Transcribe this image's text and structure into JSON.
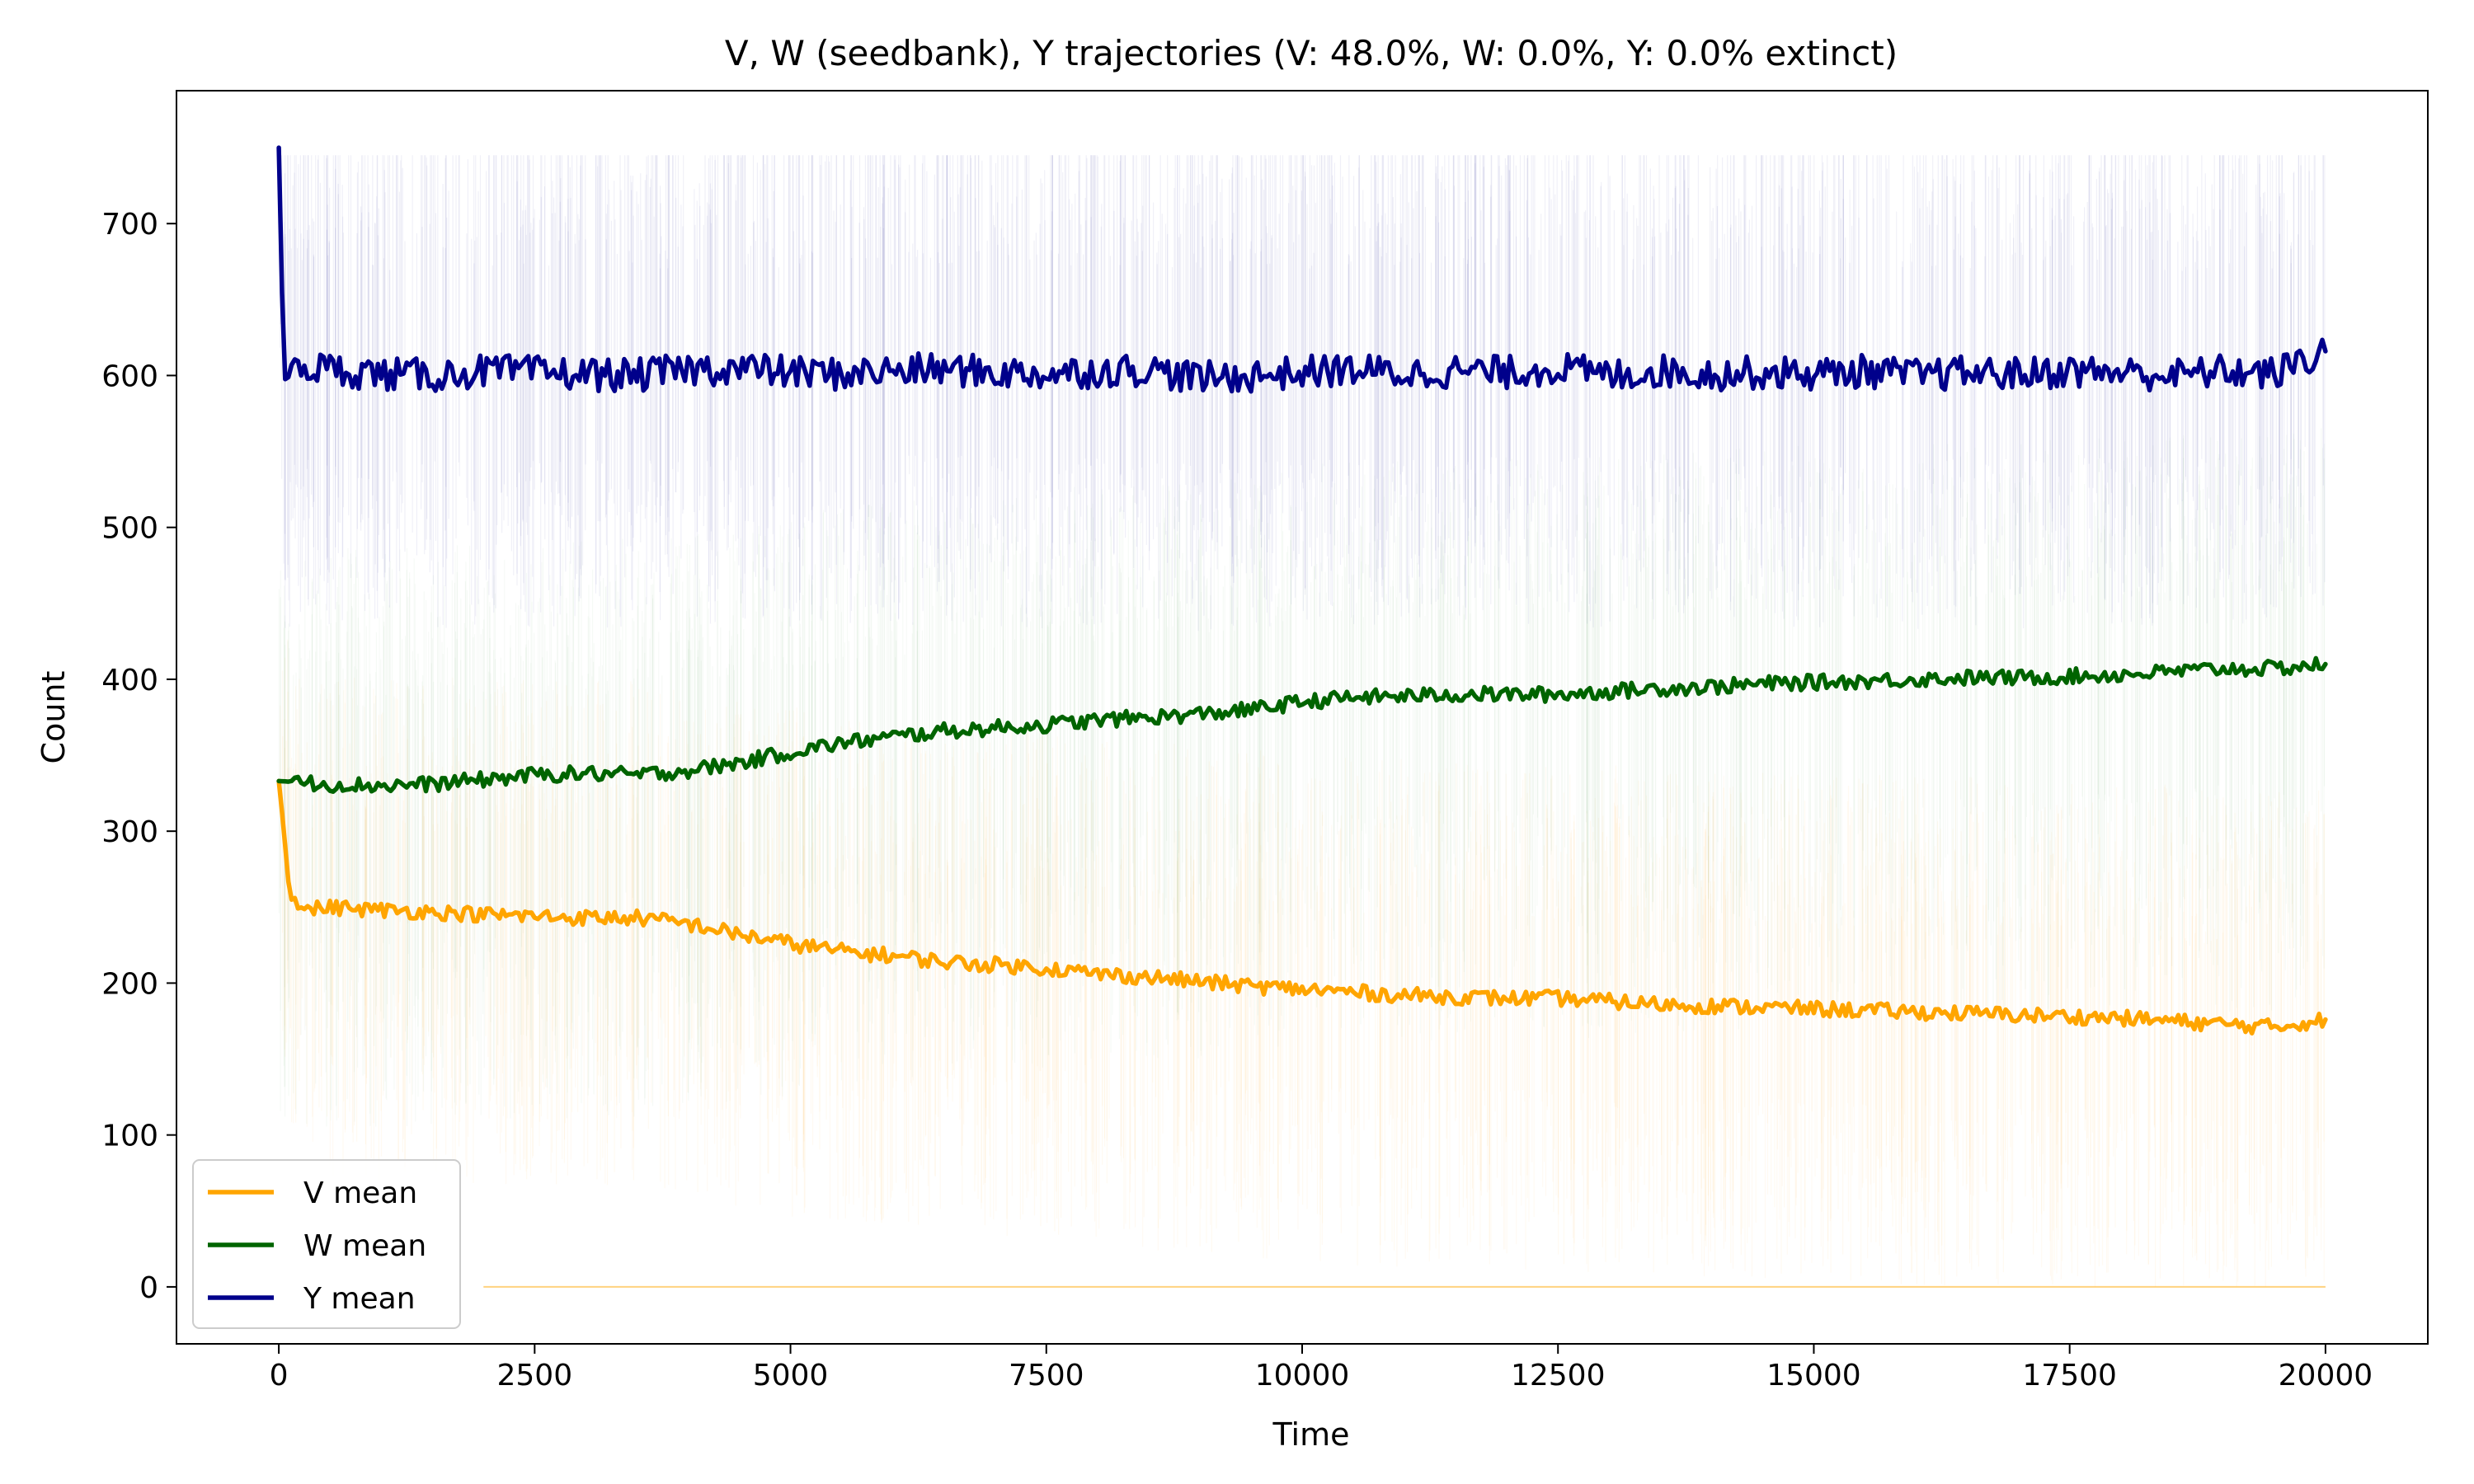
{
  "chart_data": {
    "type": "line",
    "title": "V, W (seedbank), Y trajectories (V: 48.0%, W: 0.0%, Y: 0.0% extinct)",
    "xlabel": "Time",
    "ylabel": "Count",
    "xlim": [
      -1000,
      21000
    ],
    "ylim": [
      -37.5,
      787.5
    ],
    "xticks": [
      0,
      2500,
      5000,
      7500,
      10000,
      12500,
      15000,
      17500,
      20000
    ],
    "yticks": [
      0,
      100,
      200,
      300,
      400,
      500,
      600,
      700
    ],
    "grid": false,
    "legend_position": "lower-left",
    "series": [
      {
        "name": "V mean",
        "color": "#FFA500",
        "x": [
          0,
          50,
          100,
          250,
          500,
          1000,
          1500,
          2000,
          2500,
          3000,
          3500,
          4000,
          4500,
          5000,
          5500,
          6000,
          6500,
          7000,
          7500,
          8000,
          8500,
          9000,
          9500,
          10000,
          10500,
          11000,
          11500,
          12000,
          12500,
          13000,
          13500,
          14000,
          14500,
          15000,
          15500,
          16000,
          16500,
          17000,
          17500,
          18000,
          18500,
          19000,
          19500,
          20000
        ],
        "y": [
          333,
          300,
          262,
          248,
          250,
          248,
          247,
          245,
          244,
          243,
          243,
          239,
          232,
          226,
          221,
          218,
          214,
          212,
          210,
          206,
          204,
          201,
          198,
          196,
          194,
          192,
          191,
          190,
          190,
          188,
          186,
          185,
          184,
          183,
          182,
          181,
          180,
          179,
          178,
          177,
          175,
          173,
          171,
          176
        ]
      },
      {
        "name": "W mean",
        "color": "#006400",
        "x": [
          0,
          250,
          500,
          1000,
          1500,
          2000,
          2500,
          3000,
          3500,
          4000,
          4500,
          5000,
          5500,
          6000,
          6500,
          7000,
          7500,
          8000,
          8500,
          9000,
          9500,
          10000,
          10500,
          11000,
          11500,
          12000,
          12500,
          13000,
          13500,
          14000,
          14500,
          15000,
          15500,
          16000,
          16500,
          17000,
          17500,
          18000,
          18500,
          19000,
          19500,
          20000
        ],
        "y": [
          333,
          332,
          331,
          330,
          331,
          334,
          337,
          338,
          337,
          340,
          345,
          352,
          358,
          362,
          366,
          368,
          370,
          373,
          375,
          377,
          380,
          385,
          388,
          389,
          390,
          390,
          390,
          392,
          394,
          395,
          397,
          398,
          399,
          400,
          401,
          401,
          402,
          403,
          405,
          407,
          407,
          410
        ]
      },
      {
        "name": "Y mean",
        "color": "#00008B",
        "x": [
          0,
          50,
          250,
          500,
          1000,
          1500,
          2000,
          2500,
          3000,
          3500,
          4000,
          4500,
          5000,
          5500,
          6000,
          6500,
          7000,
          7500,
          8000,
          8500,
          9000,
          9500,
          10000,
          10500,
          11000,
          11500,
          12000,
          12500,
          13000,
          13500,
          14000,
          14500,
          15000,
          15500,
          16000,
          16500,
          17000,
          17500,
          18000,
          18500,
          19000,
          19500,
          20000
        ],
        "y": [
          750,
          597,
          606,
          604,
          601,
          600,
          603,
          602,
          601,
          600,
          604,
          605,
          602,
          601,
          603,
          604,
          602,
          601,
          603,
          604,
          598,
          600,
          602,
          604,
          601,
          603,
          602,
          605,
          600,
          603,
          601,
          602,
          601,
          603,
          600,
          602,
          601,
          603,
          602,
          600,
          603,
          601,
          616
        ]
      }
    ]
  }
}
